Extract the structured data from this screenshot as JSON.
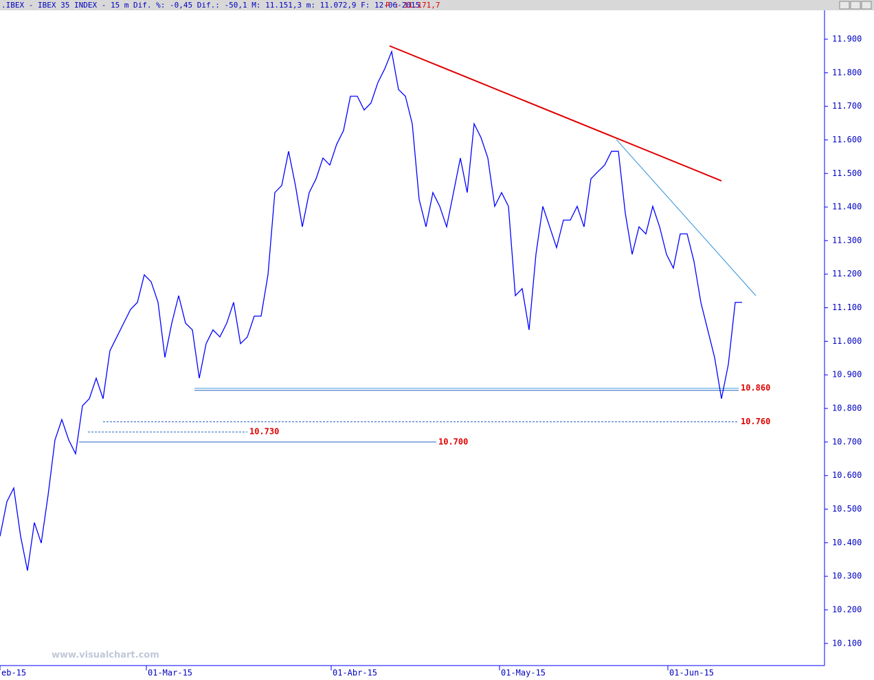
{
  "chart_data": {
    "type": "line",
    "header": ".IBEX - IBEX 35 INDEX -  15 m Dif. %: -0,45 Dif.: -50,1 M: 11.151,3 m: 11.072,9 F: 12-06-2015",
    "header_price": "P : 11.171,7",
    "watermark": "www.visualchart.com",
    "series": [
      {
        "name": "IBEX 35 INDEX",
        "color": "#0000ff",
        "values": [
          10419,
          10522,
          10563,
          10419,
          10317,
          10460,
          10399,
          10542,
          10706,
          10767,
          10706,
          10665,
          10808,
          10829,
          10890,
          10829,
          10972,
          11013,
          11054,
          11095,
          11116,
          11198,
          11177,
          11116,
          10952,
          11054,
          11136,
          11054,
          11034,
          10890,
          10993,
          11034,
          11013,
          11054,
          11116,
          10993,
          11013,
          11075,
          11075,
          11198,
          11443,
          11464,
          11566,
          11464,
          11341,
          11443,
          11484,
          11546,
          11525,
          11587,
          11628,
          11730,
          11730,
          11689,
          11710,
          11771,
          11812,
          11863,
          11750,
          11730,
          11648,
          11423,
          11341,
          11443,
          11402,
          11341,
          11443,
          11546,
          11443,
          11648,
          11607,
          11546,
          11402,
          11443,
          11402,
          11136,
          11157,
          11034,
          11259,
          11402,
          11341,
          11279,
          11361,
          11361,
          11402,
          11341,
          11484,
          11505,
          11525,
          11566,
          11566,
          11382,
          11259,
          11341,
          11320,
          11402,
          11341,
          11259,
          11218,
          11320,
          11320,
          11238,
          11116,
          11034,
          10952,
          10829,
          10931,
          11116,
          11116
        ]
      }
    ],
    "xlim": [
      0,
      120
    ],
    "xticks": [
      {
        "value": 0,
        "label": "eb-15"
      },
      {
        "value": 21.3,
        "label": "01-Mar-15"
      },
      {
        "value": 48.2,
        "label": "01-Abr-15"
      },
      {
        "value": 72.7,
        "label": "01-May-15"
      },
      {
        "value": 97.2,
        "label": "01-Jun-15"
      }
    ],
    "ylim": [
      10034,
      11986
    ],
    "yticks": [
      {
        "value": 11900,
        "label": "11.900"
      },
      {
        "value": 11800,
        "label": "11.800"
      },
      {
        "value": 11700,
        "label": "11.700"
      },
      {
        "value": 11600,
        "label": "11.600"
      },
      {
        "value": 11500,
        "label": "11.500"
      },
      {
        "value": 11400,
        "label": "11.400"
      },
      {
        "value": 11300,
        "label": "11.300"
      },
      {
        "value": 11200,
        "label": "11.200"
      },
      {
        "value": 11100,
        "label": "11.100"
      },
      {
        "value": 11000,
        "label": "11.000"
      },
      {
        "value": 10900,
        "label": "10.900"
      },
      {
        "value": 10800,
        "label": "10.800"
      },
      {
        "value": 10700,
        "label": "10.700"
      },
      {
        "value": 10600,
        "label": "10.600"
      },
      {
        "value": 10500,
        "label": "10.500"
      },
      {
        "value": 10400,
        "label": "10.400"
      },
      {
        "value": 10300,
        "label": "10.300"
      },
      {
        "value": 10200,
        "label": "10.200"
      },
      {
        "value": 10100,
        "label": "10.100"
      }
    ],
    "trendlines": [
      {
        "x": [
          56.7,
          105
        ],
        "y": [
          11880,
          11478
        ],
        "color": "#e00000",
        "width": 2
      },
      {
        "x": [
          89.7,
          110
        ],
        "y": [
          11601,
          11136
        ],
        "color": "#2a8fd8",
        "width": 1
      }
    ],
    "levels": [
      {
        "value": 10860,
        "label": "10.860",
        "x": [
          28.3,
          107.5
        ],
        "dashed": false,
        "color": "#3aa0d8"
      },
      {
        "value": 10760,
        "label": "10.760",
        "x": [
          15,
          107.5
        ],
        "dashed": true,
        "color": "#2060c0"
      },
      {
        "value": 10730,
        "label": "10.730",
        "x": [
          12.8,
          36
        ],
        "dashed": true,
        "color": "#2060c0"
      },
      {
        "value": 10700,
        "label": "10.700",
        "x": [
          11.5,
          63.5
        ],
        "dashed": false,
        "color": "#2060c0"
      }
    ]
  }
}
